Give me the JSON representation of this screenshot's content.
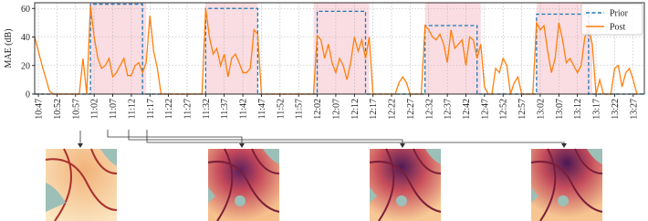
{
  "chart_data": {
    "type": "line",
    "y_label": "MAE (dB)",
    "xlim": [
      "10:46",
      "13:30"
    ],
    "ylim": [
      0,
      64
    ],
    "yticks": [
      0,
      20,
      40,
      60
    ],
    "grid": true,
    "legend": "upper right",
    "xticks": [
      "10:47",
      "10:52",
      "10:57",
      "11:02",
      "11:07",
      "11:12",
      "11:17",
      "11:22",
      "11:27",
      "11:32",
      "11:37",
      "11:42",
      "11:47",
      "11:52",
      "11:57",
      "12:02",
      "12:07",
      "12:12",
      "12:17",
      "12:22",
      "12:27",
      "12:32",
      "12:37",
      "12:42",
      "12:47",
      "12:52",
      "12:57",
      "13:02",
      "13:07",
      "13:12",
      "13:17",
      "13:22",
      "13:27"
    ],
    "shaded": [
      [
        "11:01",
        "11:16"
      ],
      [
        "11:32",
        "11:46"
      ],
      [
        "12:01",
        "12:16"
      ],
      [
        "12:31",
        "12:46"
      ],
      [
        "13:01",
        "13:16"
      ]
    ],
    "shaded_color": "#f7c6cf",
    "series": [
      {
        "name": "Prior",
        "color": "#1f77b4",
        "dashed": true,
        "x": [
          "10:46",
          "11:01",
          "11:01",
          "11:15",
          "11:15",
          "11:32",
          "11:32",
          "11:46",
          "11:46",
          "12:02",
          "12:02",
          "12:15",
          "12:15",
          "12:31",
          "12:31",
          "12:45",
          "12:45",
          "13:01",
          "13:01",
          "13:15",
          "13:15",
          "13:30"
        ],
        "values": [
          0,
          0,
          63,
          63,
          0,
          0,
          60,
          60,
          0,
          0,
          58,
          58,
          0,
          0,
          48,
          48,
          0,
          0,
          56,
          56,
          0,
          0
        ]
      },
      {
        "name": "Post",
        "color": "#ff7f0e",
        "dashed": false,
        "x": [
          "10:46",
          "10:48",
          "10:50",
          "10:51",
          "10:58",
          "10:59",
          "11:00",
          "11:01",
          "11:02",
          "11:03",
          "11:04",
          "11:05",
          "11:06",
          "11:07",
          "11:08",
          "11:09",
          "11:10",
          "11:11",
          "11:12",
          "11:13",
          "11:14",
          "11:15",
          "11:16",
          "11:17",
          "11:18",
          "11:19",
          "11:20",
          "11:31",
          "11:32",
          "11:33",
          "11:34",
          "11:35",
          "11:36",
          "11:37",
          "11:38",
          "11:39",
          "11:40",
          "11:41",
          "11:42",
          "11:43",
          "11:44",
          "11:45",
          "11:46",
          "11:47",
          "12:01",
          "12:02",
          "12:03",
          "12:04",
          "12:05",
          "12:06",
          "12:07",
          "12:08",
          "12:09",
          "12:10",
          "12:11",
          "12:12",
          "12:13",
          "12:14",
          "12:15",
          "12:16",
          "12:17",
          "12:23",
          "12:24",
          "12:25",
          "12:26",
          "12:27",
          "12:30",
          "12:31",
          "12:32",
          "12:33",
          "12:34",
          "12:35",
          "12:36",
          "12:37",
          "12:38",
          "12:39",
          "12:40",
          "12:41",
          "12:42",
          "12:43",
          "12:44",
          "12:45",
          "12:46",
          "12:47",
          "12:48",
          "12:49",
          "12:50",
          "12:51",
          "12:52",
          "12:53",
          "12:54",
          "12:55",
          "12:56",
          "12:57",
          "13:00",
          "13:01",
          "13:02",
          "13:03",
          "13:04",
          "13:05",
          "13:06",
          "13:07",
          "13:08",
          "13:09",
          "13:10",
          "13:11",
          "13:12",
          "13:13",
          "13:14",
          "13:15",
          "13:16",
          "13:17",
          "13:18",
          "13:19",
          "13:21",
          "13:22",
          "13:23",
          "13:24",
          "13:25",
          "13:26",
          "13:27",
          "13:28"
        ],
        "values": [
          40,
          20,
          2,
          0,
          0,
          25,
          0,
          62,
          40,
          25,
          18,
          20,
          25,
          12,
          15,
          20,
          25,
          13,
          13,
          20,
          22,
          15,
          22,
          55,
          30,
          18,
          0,
          0,
          60,
          40,
          28,
          32,
          20,
          28,
          12,
          25,
          28,
          22,
          15,
          15,
          18,
          45,
          42,
          0,
          0,
          41,
          38,
          25,
          35,
          22,
          15,
          25,
          20,
          10,
          22,
          40,
          30,
          38,
          25,
          40,
          0,
          0,
          8,
          12,
          8,
          0,
          0,
          48,
          45,
          40,
          38,
          42,
          35,
          22,
          45,
          32,
          35,
          38,
          20,
          40,
          38,
          25,
          35,
          5,
          0,
          0,
          18,
          15,
          25,
          20,
          0,
          8,
          12,
          0,
          0,
          50,
          45,
          48,
          30,
          15,
          25,
          50,
          38,
          22,
          25,
          20,
          15,
          20,
          40,
          45,
          35,
          0,
          10,
          0,
          0,
          18,
          20,
          5,
          15,
          18,
          10,
          0
        ]
      }
    ]
  }
}
